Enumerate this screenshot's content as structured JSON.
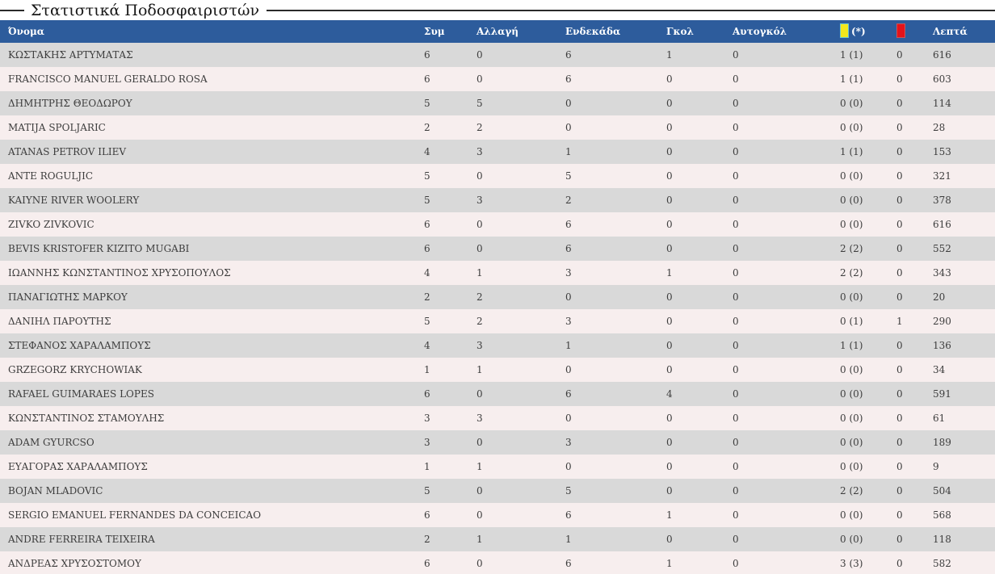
{
  "page": {
    "title": "Στατιστικά Ποδοσφαιριστών"
  },
  "colors": {
    "header_bg": "#2d5c9c",
    "row_even_bg": "#d9d9d9",
    "row_odd_bg": "#f7eeee",
    "yellow_card": "#f2e71d",
    "red_card": "#e3131b",
    "title_rule": "#2a2a2a"
  },
  "icons": {
    "yellow_card": "yellow-card-icon",
    "red_card": "red-card-icon"
  },
  "table": {
    "headers": {
      "name": "Όνομα",
      "appearances": "Συμ",
      "substitution": "Αλλαγή",
      "starting_eleven": "Ενδεκάδα",
      "goals": "Γκολ",
      "own_goals": "Αυτογκόλ",
      "yellow_cards_suffix": "(*)",
      "minutes": "Λεπτά"
    },
    "rows": [
      {
        "name": "ΚΩΣΤΑΚΗΣ ΑΡΤΥΜΑΤΑΣ",
        "appearances": "6",
        "substitution": "0",
        "starting_eleven": "6",
        "goals": "1",
        "own_goals": "0",
        "yellow_cards": "1 (1)",
        "red_cards": "0",
        "minutes": "616"
      },
      {
        "name": "FRANCISCO MANUEL GERALDO ROSA",
        "appearances": "6",
        "substitution": "0",
        "starting_eleven": "6",
        "goals": "0",
        "own_goals": "0",
        "yellow_cards": "1 (1)",
        "red_cards": "0",
        "minutes": "603"
      },
      {
        "name": "ΔΗΜΗΤΡΗΣ ΘΕΟΔΩΡΟΥ",
        "appearances": "5",
        "substitution": "5",
        "starting_eleven": "0",
        "goals": "0",
        "own_goals": "0",
        "yellow_cards": "0 (0)",
        "red_cards": "0",
        "minutes": "114"
      },
      {
        "name": "MATIJA SPOLJARIC",
        "appearances": "2",
        "substitution": "2",
        "starting_eleven": "0",
        "goals": "0",
        "own_goals": "0",
        "yellow_cards": "0 (0)",
        "red_cards": "0",
        "minutes": "28"
      },
      {
        "name": "ATANAS PETROV ILIEV",
        "appearances": "4",
        "substitution": "3",
        "starting_eleven": "1",
        "goals": "0",
        "own_goals": "0",
        "yellow_cards": "1 (1)",
        "red_cards": "0",
        "minutes": "153"
      },
      {
        "name": "ANTE ROGULJIC",
        "appearances": "5",
        "substitution": "0",
        "starting_eleven": "5",
        "goals": "0",
        "own_goals": "0",
        "yellow_cards": "0 (0)",
        "red_cards": "0",
        "minutes": "321"
      },
      {
        "name": "KAIYNE RIVER WOOLERY",
        "appearances": "5",
        "substitution": "3",
        "starting_eleven": "2",
        "goals": "0",
        "own_goals": "0",
        "yellow_cards": "0 (0)",
        "red_cards": "0",
        "minutes": "378"
      },
      {
        "name": "ZIVKO ZIVKOVIC",
        "appearances": "6",
        "substitution": "0",
        "starting_eleven": "6",
        "goals": "0",
        "own_goals": "0",
        "yellow_cards": "0 (0)",
        "red_cards": "0",
        "minutes": "616"
      },
      {
        "name": "BEVIS KRISTOFER KIZITO MUGABI",
        "appearances": "6",
        "substitution": "0",
        "starting_eleven": "6",
        "goals": "0",
        "own_goals": "0",
        "yellow_cards": "2 (2)",
        "red_cards": "0",
        "minutes": "552"
      },
      {
        "name": "ΙΩΑΝΝΗΣ ΚΩΝΣΤΑΝΤΙΝΟΣ ΧΡΥΣΟΠΟΥΛΟΣ",
        "appearances": "4",
        "substitution": "1",
        "starting_eleven": "3",
        "goals": "1",
        "own_goals": "0",
        "yellow_cards": "2 (2)",
        "red_cards": "0",
        "minutes": "343"
      },
      {
        "name": "ΠΑΝΑΓΙΩΤΗΣ ΜΑΡΚΟΥ",
        "appearances": "2",
        "substitution": "2",
        "starting_eleven": "0",
        "goals": "0",
        "own_goals": "0",
        "yellow_cards": "0 (0)",
        "red_cards": "0",
        "minutes": "20"
      },
      {
        "name": "ΔΑΝΙΗΛ ΠΑΡΟΥΤΗΣ",
        "appearances": "5",
        "substitution": "2",
        "starting_eleven": "3",
        "goals": "0",
        "own_goals": "0",
        "yellow_cards": "0 (1)",
        "red_cards": "1",
        "minutes": "290"
      },
      {
        "name": "ΣΤΕΦΑΝΟΣ ΧΑΡΑΛΑΜΠΟΥΣ",
        "appearances": "4",
        "substitution": "3",
        "starting_eleven": "1",
        "goals": "0",
        "own_goals": "0",
        "yellow_cards": "1 (1)",
        "red_cards": "0",
        "minutes": "136"
      },
      {
        "name": "GRZEGORZ KRYCHOWIAK",
        "appearances": "1",
        "substitution": "1",
        "starting_eleven": "0",
        "goals": "0",
        "own_goals": "0",
        "yellow_cards": "0 (0)",
        "red_cards": "0",
        "minutes": "34"
      },
      {
        "name": "RAFAEL GUIMARAES LOPES",
        "appearances": "6",
        "substitution": "0",
        "starting_eleven": "6",
        "goals": "4",
        "own_goals": "0",
        "yellow_cards": "0 (0)",
        "red_cards": "0",
        "minutes": "591"
      },
      {
        "name": "ΚΩΝΣΤΑΝΤΙΝΟΣ ΣΤΑΜΟΥΛΗΣ",
        "appearances": "3",
        "substitution": "3",
        "starting_eleven": "0",
        "goals": "0",
        "own_goals": "0",
        "yellow_cards": "0 (0)",
        "red_cards": "0",
        "minutes": "61"
      },
      {
        "name": "ADAM GYURCSO",
        "appearances": "3",
        "substitution": "0",
        "starting_eleven": "3",
        "goals": "0",
        "own_goals": "0",
        "yellow_cards": "0 (0)",
        "red_cards": "0",
        "minutes": "189"
      },
      {
        "name": "ΕΥΑΓΟΡΑΣ ΧΑΡΑΛΑΜΠΟΥΣ",
        "appearances": "1",
        "substitution": "1",
        "starting_eleven": "0",
        "goals": "0",
        "own_goals": "0",
        "yellow_cards": "0 (0)",
        "red_cards": "0",
        "minutes": "9"
      },
      {
        "name": "BOJAN MLADOVIC",
        "appearances": "5",
        "substitution": "0",
        "starting_eleven": "5",
        "goals": "0",
        "own_goals": "0",
        "yellow_cards": "2 (2)",
        "red_cards": "0",
        "minutes": "504"
      },
      {
        "name": "SERGIO EMANUEL FERNANDES DA CONCEICAO",
        "appearances": "6",
        "substitution": "0",
        "starting_eleven": "6",
        "goals": "1",
        "own_goals": "0",
        "yellow_cards": "0 (0)",
        "red_cards": "0",
        "minutes": "568"
      },
      {
        "name": "ANDRE FERREIRA TEIXEIRA",
        "appearances": "2",
        "substitution": "1",
        "starting_eleven": "1",
        "goals": "0",
        "own_goals": "0",
        "yellow_cards": "0 (0)",
        "red_cards": "0",
        "minutes": "118"
      },
      {
        "name": "ΑΝΔΡΕΑΣ ΧΡΥΣΟΣΤΟΜΟΥ",
        "appearances": "6",
        "substitution": "0",
        "starting_eleven": "6",
        "goals": "1",
        "own_goals": "0",
        "yellow_cards": "3 (3)",
        "red_cards": "0",
        "minutes": "582"
      }
    ]
  }
}
